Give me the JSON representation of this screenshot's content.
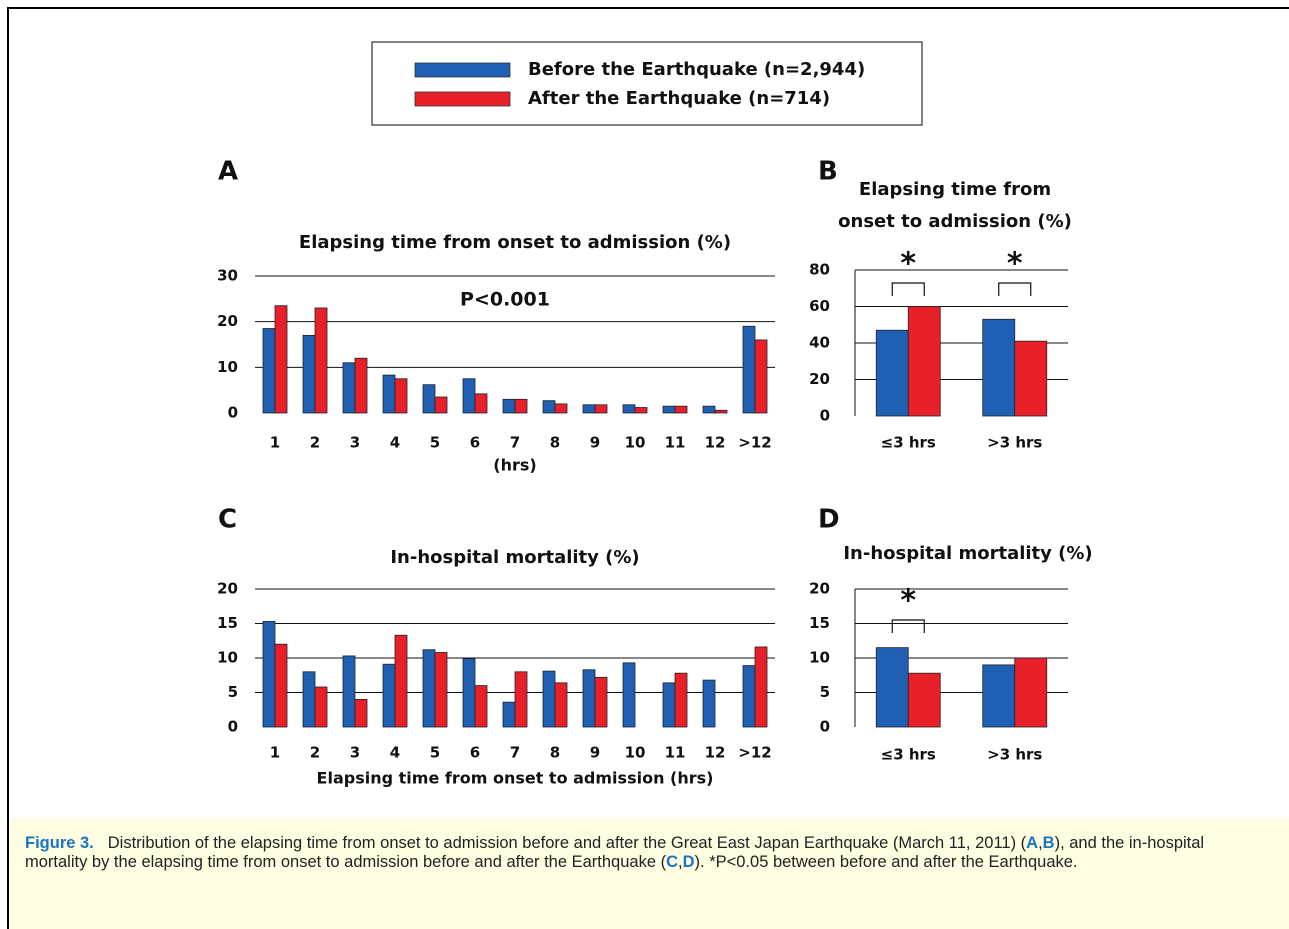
{
  "legend": [
    {
      "label": "Before the Earthquake (n=2,944)",
      "color": "#1f5fb4"
    },
    {
      "label": "After the Earthquake (n=714)",
      "color": "#e8202a"
    }
  ],
  "chart_data": [
    {
      "type": "bar",
      "panel": "A",
      "title": [
        "Elapsing time from onset to admission (%)"
      ],
      "annotation": "P<0.001",
      "x_label": "(hrs)",
      "categories": [
        "1",
        "2",
        "3",
        "4",
        "5",
        "6",
        "7",
        "8",
        "9",
        "10",
        "11",
        "12",
        ">12"
      ],
      "series": [
        {
          "color": "#1f5fb4",
          "values": [
            18.5,
            17,
            11,
            8.3,
            6.2,
            7.5,
            3,
            2.7,
            1.8,
            1.8,
            1.5,
            1.5,
            19
          ]
        },
        {
          "color": "#e8202a",
          "values": [
            23.5,
            23,
            12,
            7.5,
            3.5,
            4.2,
            3,
            2,
            1.8,
            1.2,
            1.5,
            0.6,
            16
          ]
        }
      ],
      "ylim": [
        0,
        30
      ],
      "yticks": [
        0,
        10,
        20,
        30
      ],
      "grid": true
    },
    {
      "type": "bar",
      "panel": "B",
      "title": [
        "Elapsing time from",
        "onset to admission (%)"
      ],
      "categories": [
        "≤3 hrs",
        ">3 hrs"
      ],
      "series": [
        {
          "color": "#1f5fb4",
          "values": [
            47,
            53
          ]
        },
        {
          "color": "#e8202a",
          "values": [
            60,
            41
          ]
        }
      ],
      "significance_labels": [
        "*",
        "*"
      ],
      "ylim": [
        0,
        80
      ],
      "yticks": [
        0,
        20,
        40,
        60,
        80
      ],
      "grid": true
    },
    {
      "type": "bar",
      "panel": "C",
      "title": [
        "In-hospital mortality (%)"
      ],
      "x_label": "Elapsing time from onset to admission (hrs)",
      "categories": [
        "1",
        "2",
        "3",
        "4",
        "5",
        "6",
        "7",
        "8",
        "9",
        "10",
        "11",
        "12",
        ">12"
      ],
      "series": [
        {
          "color": "#1f5fb4",
          "values": [
            15.3,
            8,
            10.3,
            9.1,
            11.2,
            9.9,
            3.6,
            8.1,
            8.3,
            9.3,
            6.4,
            6.8,
            8.9
          ]
        },
        {
          "color": "#e8202a",
          "values": [
            12,
            5.8,
            4,
            13.3,
            10.8,
            6,
            8,
            6.4,
            7.2,
            0,
            7.8,
            0,
            11.6
          ]
        }
      ],
      "ylim": [
        0,
        20
      ],
      "yticks": [
        0,
        5,
        10,
        15,
        20
      ],
      "grid": true
    },
    {
      "type": "bar",
      "panel": "D",
      "title": [
        "In-hospital mortality (%)"
      ],
      "categories": [
        "≤3 hrs",
        ">3 hrs"
      ],
      "series": [
        {
          "color": "#1f5fb4",
          "values": [
            11.5,
            9
          ]
        },
        {
          "color": "#e8202a",
          "values": [
            7.8,
            10
          ]
        }
      ],
      "significance_labels": [
        "*",
        null
      ],
      "ylim": [
        0,
        20
      ],
      "yticks": [
        0,
        5,
        10,
        15,
        20
      ],
      "grid": true
    }
  ],
  "caption": {
    "label": "Figure 3.",
    "parts": [
      "Distribution of the elapsing time from onset to admission before and after the Great East Japan Earthquake (March 11, 2011) (",
      "A",
      ",",
      "B",
      "), and the in-hospital mortality by the elapsing time from onset to admission before and after the Earthquake (",
      "C",
      ",",
      "D",
      "). *P<0.05 between before and after the Earthquake."
    ]
  }
}
